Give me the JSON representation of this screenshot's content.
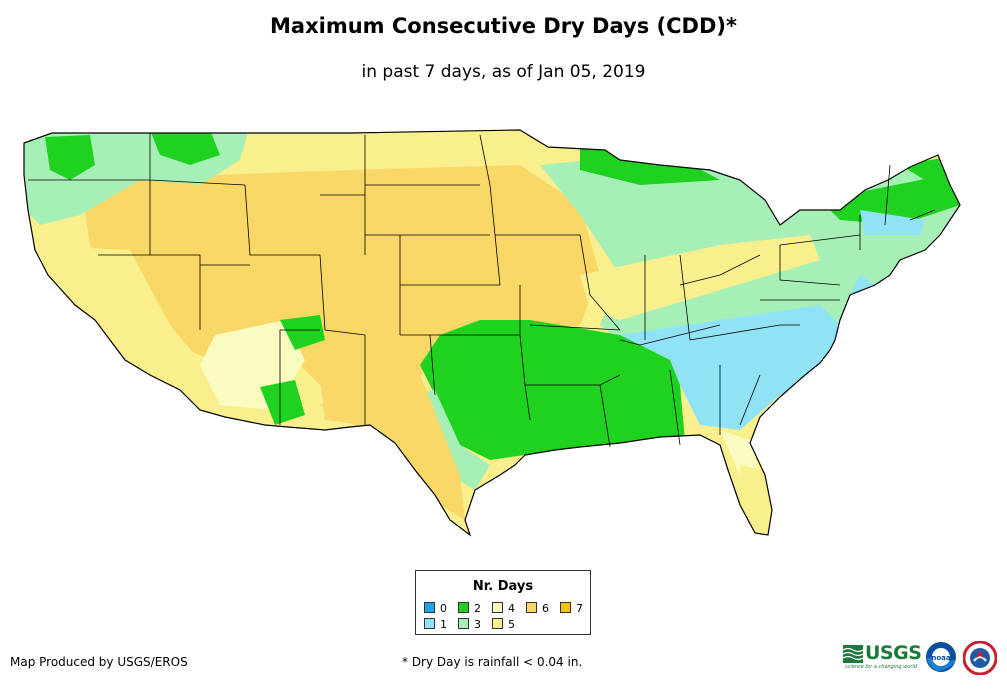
{
  "header": {
    "title": "Maximum Consecutive Dry Days (CDD)*",
    "subtitle": "in past 7 days, as of Jan 05, 2019"
  },
  "legend": {
    "title": "Nr. Days",
    "items": [
      {
        "label": "0",
        "color": "#1fa3e8"
      },
      {
        "label": "1",
        "color": "#8fe3f5"
      },
      {
        "label": "2",
        "color": "#1fd21f"
      },
      {
        "label": "3",
        "color": "#a6f0b8"
      },
      {
        "label": "4",
        "color": "#fafbc0"
      },
      {
        "label": "5",
        "color": "#f9ef8c"
      },
      {
        "label": "6",
        "color": "#f9d868"
      },
      {
        "label": "7",
        "color": "#f5c400"
      }
    ]
  },
  "footer": {
    "credit": "Map Produced by USGS/EROS",
    "note": "* Dry Day is rainfall < 0.04 in."
  },
  "logos": {
    "usgs": "USGS",
    "usgs_tagline": "science for a changing world",
    "noaa": "noaa",
    "nws": "NWS"
  },
  "map_colors": {
    "ocean": "#ffffff",
    "border": "#000000"
  }
}
